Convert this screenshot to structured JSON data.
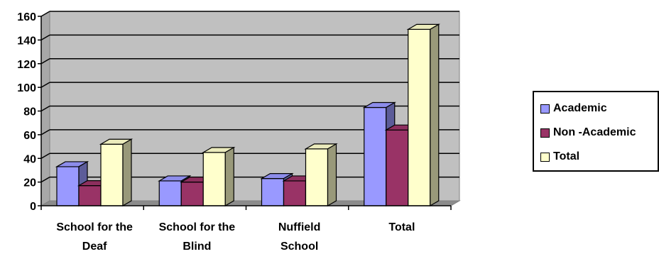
{
  "chart_data": {
    "type": "bar",
    "style": "3d-clustered-column",
    "categories": [
      "School for the Deaf",
      "School for the Blind",
      "Nuffield School",
      "Total"
    ],
    "category_label_lines": [
      [
        "School for the",
        "Deaf"
      ],
      [
        "School for the",
        "Blind"
      ],
      [
        "Nuffield",
        "School"
      ],
      [
        "Total"
      ]
    ],
    "series": [
      {
        "name": "Academic",
        "color": "#9999FF",
        "values": [
          33,
          21,
          23,
          83
        ]
      },
      {
        "name": "Non -Academic",
        "color": "#993366",
        "values": [
          17,
          20,
          21,
          64
        ]
      },
      {
        "name": "Total",
        "color": "#FFFFCC",
        "values": [
          52,
          45,
          48,
          149
        ]
      }
    ],
    "y_ticks": [
      "0",
      "20",
      "40",
      "60",
      "80",
      "100",
      "120",
      "140",
      "160"
    ],
    "ylim": [
      0,
      160
    ],
    "grid": true,
    "plot_background": "#C0C0C0",
    "legend_position": "right",
    "title": "",
    "xlabel": "",
    "ylabel": ""
  }
}
